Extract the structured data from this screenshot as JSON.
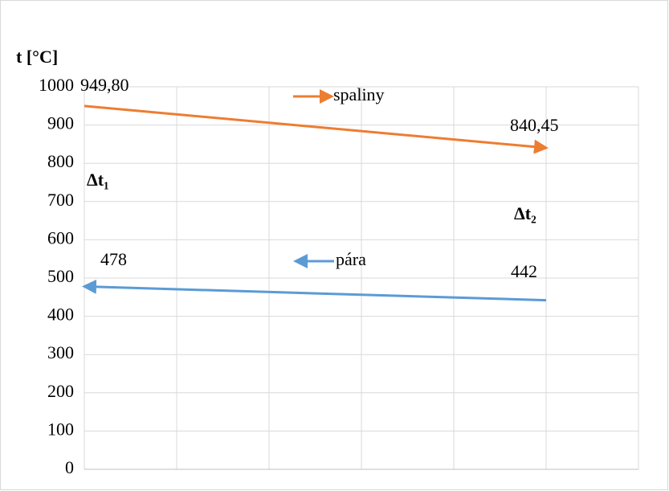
{
  "chart_data": {
    "type": "line",
    "y_label": "t [°C]",
    "x": [
      0,
      5
    ],
    "xlim": [
      0,
      6
    ],
    "xticks": [
      0,
      1,
      2,
      3,
      4,
      5,
      6
    ],
    "ylim": [
      0,
      1000
    ],
    "yticks": [
      0,
      100,
      200,
      300,
      400,
      500,
      600,
      700,
      800,
      900,
      1000
    ],
    "grid": true,
    "series": [
      {
        "name": "spaliny",
        "color": "#ed7d31",
        "arrow": "end",
        "values": [
          949.8,
          840.45
        ],
        "value_labels": [
          "949,80",
          "840,45"
        ]
      },
      {
        "name": "pára",
        "color": "#5b9bd5",
        "arrow": "start",
        "values": [
          478,
          442
        ],
        "value_labels": [
          "478",
          "442"
        ]
      }
    ],
    "annotations": [
      "Δt₁",
      "Δt₂"
    ]
  }
}
